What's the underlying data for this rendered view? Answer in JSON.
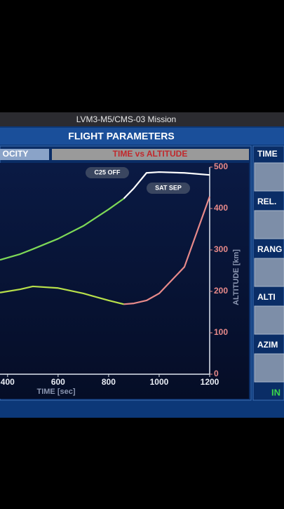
{
  "header": {
    "mission": "LVM3-M5/CMS-03 Mission",
    "title": "FLIGHT PARAMETERS"
  },
  "tabs": [
    "OCITY",
    "TIME vs ALTITUDE"
  ],
  "side_panel": {
    "labels": [
      "TIME",
      "REL.",
      "RANG",
      "ALTI",
      "AZIM"
    ],
    "status": "IN"
  },
  "chart_data": {
    "type": "line",
    "x": [
      370,
      450,
      500,
      600,
      700,
      800,
      860,
      900,
      950,
      1000,
      1100,
      1200
    ],
    "series": [
      {
        "color": "#7ed957",
        "values": [
          276,
          290,
          302,
          327,
          358,
          398,
          424,
          null,
          null,
          null,
          null,
          null
        ]
      },
      {
        "color": "#ffffff",
        "values": [
          null,
          null,
          null,
          null,
          null,
          null,
          424,
          449,
          486,
          488,
          486,
          481
        ]
      },
      {
        "color": "#b8e04a",
        "values": [
          197,
          205,
          212,
          208,
          195,
          178,
          169,
          null,
          null,
          null,
          null,
          null
        ]
      },
      {
        "color": "#e88a8a",
        "values": [
          null,
          null,
          null,
          null,
          null,
          null,
          169,
          171,
          178,
          195,
          259,
          429
        ]
      }
    ],
    "xlim": [
      370,
      1200
    ],
    "xticks": [
      400,
      600,
      800,
      1000,
      1200
    ],
    "ylim": [
      0,
      500
    ],
    "yticks": [
      0,
      100,
      200,
      300,
      400,
      500
    ],
    "xlabel": "TIME [sec]",
    "ylabel": "ALTITUDE [km]",
    "annotations": [
      "C25 OFF",
      "SAT SEP"
    ]
  }
}
